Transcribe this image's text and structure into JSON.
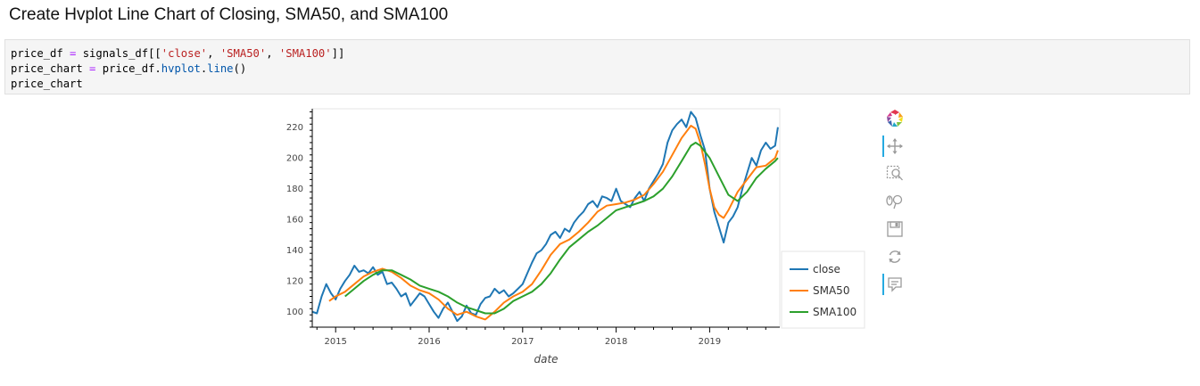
{
  "heading": "Create Hvplot Line Chart of Closing, SMA50, and SMA100",
  "code": {
    "line1": {
      "var": "price_df",
      "op": " = ",
      "a": "signals_df[[",
      "s1": "'close'",
      "c1": ", ",
      "s2": "'SMA50'",
      "c2": ", ",
      "s3": "'SMA100'",
      "end": "]]"
    },
    "line2": {
      "var": "price_chart",
      "op": " = ",
      "a": "price_df.",
      "attr1": "hvplot",
      "dot": ".",
      "attr2": "line",
      "end": "()"
    },
    "line3": "price_chart"
  },
  "toolbar": {
    "logo": "bokeh-logo-icon",
    "tools": [
      {
        "icon": "pan-icon",
        "active": true
      },
      {
        "icon": "box-zoom-icon",
        "active": false
      },
      {
        "icon": "wheel-zoom-icon",
        "active": false
      },
      {
        "icon": "save-icon",
        "active": false
      },
      {
        "icon": "reset-icon",
        "active": false
      },
      {
        "icon": "hover-icon",
        "active": true
      }
    ]
  },
  "chart_data": {
    "type": "line",
    "xlabel": "date",
    "ylabel": "",
    "x_ticks": [
      "2015",
      "2016",
      "2017",
      "2018",
      "2019"
    ],
    "y_ticks": [
      100,
      120,
      140,
      160,
      180,
      200,
      220
    ],
    "xlim": [
      2014.75,
      2019.75
    ],
    "ylim": [
      90,
      232
    ],
    "legend_position": "bottom-right",
    "series": [
      {
        "name": "close",
        "color": "#1f77b4",
        "x": [
          2014.75,
          2014.8,
          2014.85,
          2014.9,
          2014.95,
          2015.0,
          2015.05,
          2015.1,
          2015.15,
          2015.2,
          2015.25,
          2015.3,
          2015.35,
          2015.4,
          2015.45,
          2015.5,
          2015.55,
          2015.6,
          2015.65,
          2015.7,
          2015.75,
          2015.8,
          2015.85,
          2015.9,
          2015.95,
          2016.0,
          2016.05,
          2016.1,
          2016.15,
          2016.2,
          2016.25,
          2016.3,
          2016.35,
          2016.4,
          2016.45,
          2016.5,
          2016.55,
          2016.6,
          2016.65,
          2016.7,
          2016.75,
          2016.8,
          2016.85,
          2016.9,
          2016.95,
          2017.0,
          2017.05,
          2017.1,
          2017.15,
          2017.2,
          2017.25,
          2017.3,
          2017.35,
          2017.4,
          2017.45,
          2017.5,
          2017.55,
          2017.6,
          2017.65,
          2017.7,
          2017.75,
          2017.8,
          2017.85,
          2017.9,
          2017.95,
          2018.0,
          2018.05,
          2018.1,
          2018.15,
          2018.2,
          2018.25,
          2018.3,
          2018.35,
          2018.4,
          2018.45,
          2018.5,
          2018.55,
          2018.6,
          2018.65,
          2018.7,
          2018.75,
          2018.8,
          2018.85,
          2018.9,
          2018.95,
          2019.0,
          2019.05,
          2019.1,
          2019.15,
          2019.2,
          2019.25,
          2019.3,
          2019.35,
          2019.4,
          2019.45,
          2019.5,
          2019.55,
          2019.6,
          2019.65,
          2019.7,
          2019.73
        ],
        "y": [
          100,
          99,
          110,
          118,
          112,
          108,
          115,
          120,
          124,
          130,
          126,
          127,
          125,
          129,
          124,
          126,
          118,
          119,
          115,
          110,
          112,
          104,
          108,
          112,
          110,
          105,
          100,
          96,
          102,
          106,
          100,
          94,
          97,
          104,
          99,
          98,
          105,
          109,
          110,
          115,
          112,
          114,
          110,
          112,
          115,
          118,
          125,
          132,
          138,
          140,
          144,
          150,
          152,
          148,
          154,
          152,
          158,
          162,
          165,
          170,
          172,
          168,
          175,
          174,
          172,
          180,
          172,
          170,
          168,
          174,
          178,
          172,
          180,
          185,
          190,
          196,
          210,
          218,
          222,
          225,
          220,
          230,
          226,
          215,
          205,
          180,
          165,
          155,
          145,
          158,
          162,
          168,
          180,
          190,
          200,
          195,
          205,
          210,
          206,
          208,
          220
        ]
      },
      {
        "name": "SMA50",
        "color": "#ff7f0e",
        "x": [
          2014.93,
          2015.0,
          2015.1,
          2015.2,
          2015.3,
          2015.4,
          2015.5,
          2015.6,
          2015.7,
          2015.8,
          2015.9,
          2016.0,
          2016.1,
          2016.2,
          2016.3,
          2016.4,
          2016.5,
          2016.6,
          2016.7,
          2016.8,
          2016.9,
          2017.0,
          2017.1,
          2017.2,
          2017.3,
          2017.4,
          2017.5,
          2017.6,
          2017.7,
          2017.8,
          2017.9,
          2018.0,
          2018.1,
          2018.2,
          2018.3,
          2018.4,
          2018.5,
          2018.6,
          2018.7,
          2018.8,
          2018.85,
          2018.9,
          2018.95,
          2019.0,
          2019.05,
          2019.1,
          2019.15,
          2019.2,
          2019.3,
          2019.4,
          2019.5,
          2019.6,
          2019.7,
          2019.73
        ],
        "y": [
          107,
          110,
          113,
          118,
          123,
          126,
          128,
          126,
          122,
          117,
          114,
          112,
          108,
          102,
          98,
          100,
          97,
          95,
          100,
          106,
          110,
          113,
          118,
          127,
          137,
          144,
          147,
          152,
          158,
          165,
          169,
          170,
          171,
          173,
          176,
          183,
          191,
          202,
          213,
          221,
          219,
          210,
          196,
          180,
          168,
          163,
          161,
          166,
          178,
          186,
          194,
          195,
          200,
          205
        ]
      },
      {
        "name": "SMA100",
        "color": "#2ca02c",
        "x": [
          2015.1,
          2015.2,
          2015.3,
          2015.4,
          2015.5,
          2015.6,
          2015.7,
          2015.8,
          2015.9,
          2016.0,
          2016.1,
          2016.2,
          2016.3,
          2016.4,
          2016.5,
          2016.6,
          2016.7,
          2016.8,
          2016.9,
          2017.0,
          2017.1,
          2017.2,
          2017.3,
          2017.4,
          2017.5,
          2017.6,
          2017.7,
          2017.8,
          2017.9,
          2018.0,
          2018.1,
          2018.2,
          2018.3,
          2018.4,
          2018.5,
          2018.6,
          2018.7,
          2018.8,
          2018.85,
          2018.9,
          2019.0,
          2019.1,
          2019.2,
          2019.3,
          2019.4,
          2019.5,
          2019.6,
          2019.7,
          2019.73
        ],
        "y": [
          110,
          115,
          120,
          124,
          127,
          127,
          124,
          121,
          117,
          115,
          113,
          110,
          106,
          103,
          101,
          99,
          99,
          102,
          107,
          110,
          113,
          118,
          125,
          134,
          142,
          147,
          152,
          156,
          161,
          166,
          168,
          170,
          172,
          175,
          180,
          188,
          198,
          208,
          210,
          208,
          200,
          188,
          176,
          172,
          178,
          187,
          193,
          198,
          200
        ]
      }
    ]
  }
}
